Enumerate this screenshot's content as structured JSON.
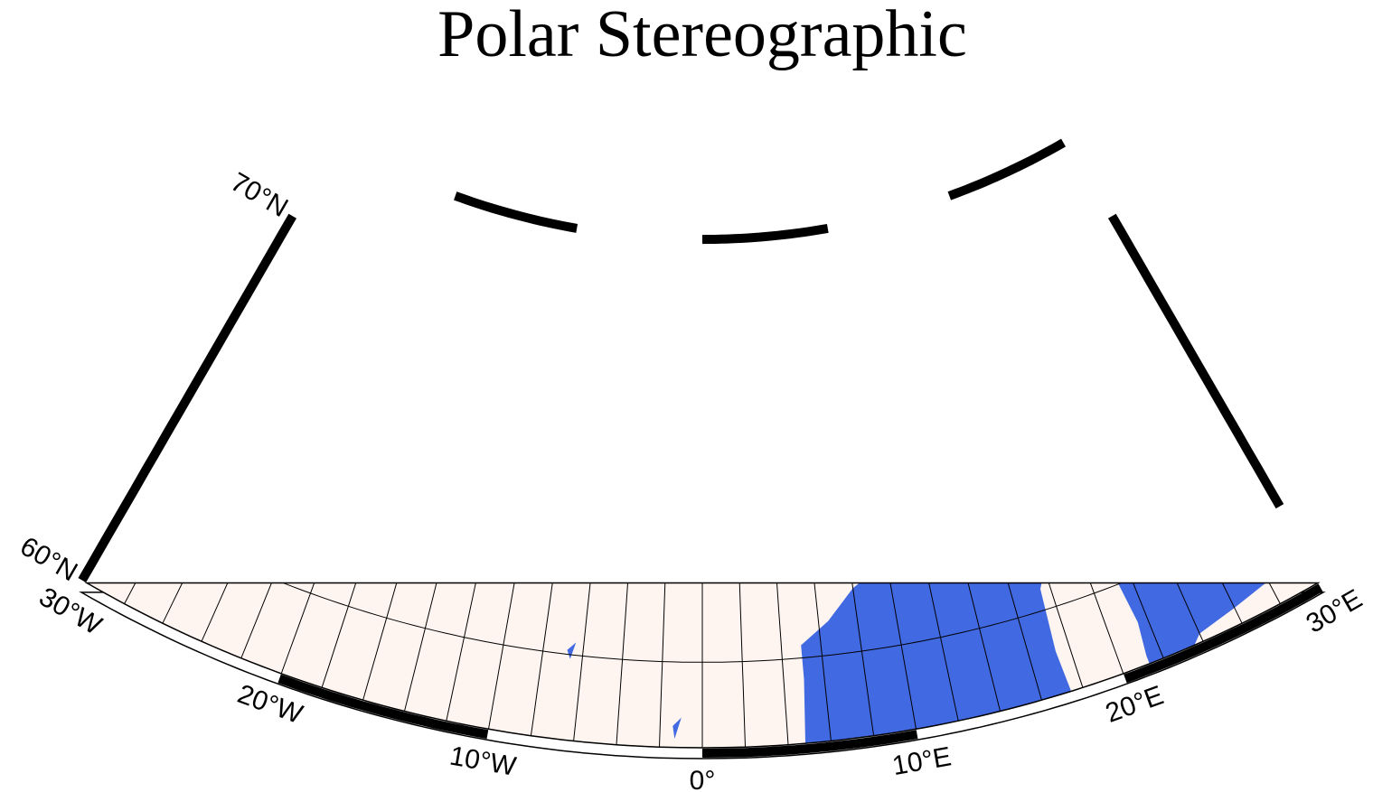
{
  "title": "Polar Stereographic",
  "lon_labels": [
    "30°W",
    "20°W",
    "10°W",
    "0°",
    "10°E",
    "20°E",
    "30°E"
  ],
  "lat_labels": [
    "60°N",
    "70°N"
  ]
}
